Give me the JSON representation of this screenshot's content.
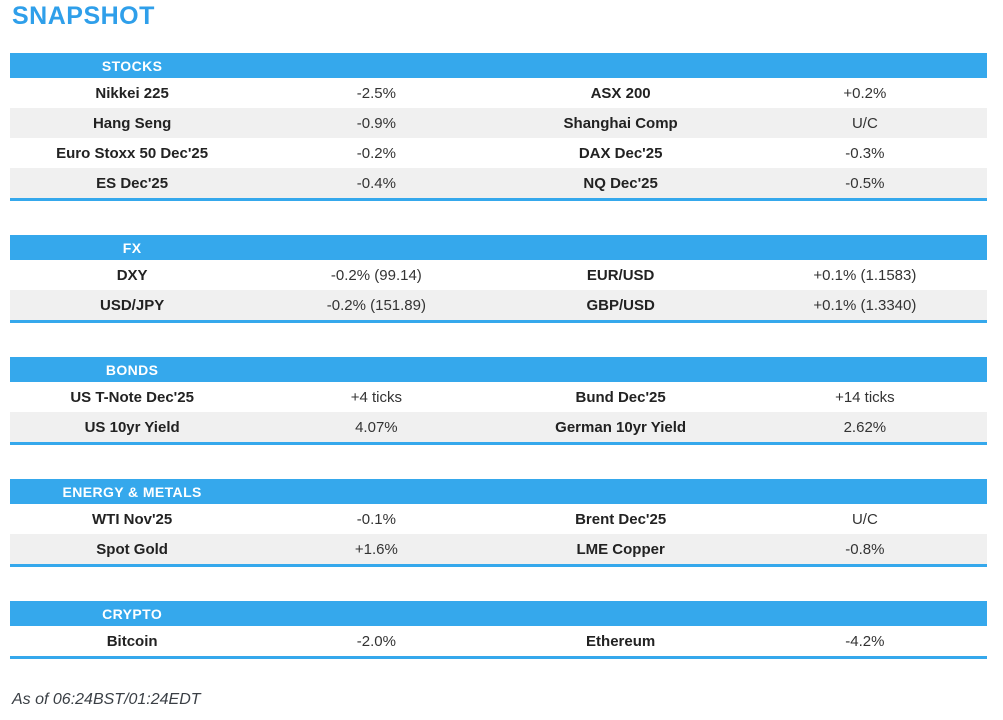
{
  "page": {
    "title": "SNAPSHOT",
    "footer": "As of 06:24BST/01:24EDT"
  },
  "colors": {
    "accent_blue": "#35a8ec",
    "title_blue": "#2f9fea",
    "row_alt_gray": "#f0f0f0",
    "label_text": "#222222",
    "value_text": "#333333"
  },
  "sections": [
    {
      "header": "STOCKS",
      "rows": [
        [
          "Nikkei 225",
          "-2.5%",
          "ASX 200",
          "+0.2%"
        ],
        [
          "Hang Seng",
          "-0.9%",
          "Shanghai Comp",
          "U/C"
        ],
        [
          "Euro Stoxx 50 Dec'25",
          "-0.2%",
          "DAX Dec'25",
          "-0.3%"
        ],
        [
          "ES Dec'25",
          "-0.4%",
          "NQ Dec'25",
          "-0.5%"
        ]
      ]
    },
    {
      "header": "FX",
      "rows": [
        [
          "DXY",
          "-0.2% (99.14)",
          "EUR/USD",
          "+0.1% (1.1583)"
        ],
        [
          "USD/JPY",
          "-0.2% (151.89)",
          "GBP/USD",
          "+0.1% (1.3340)"
        ]
      ]
    },
    {
      "header": "BONDS",
      "rows": [
        [
          "US T-Note Dec'25",
          "+4 ticks",
          "Bund Dec'25",
          "+14 ticks"
        ],
        [
          "US 10yr Yield",
          "4.07%",
          "German 10yr Yield",
          "2.62%"
        ]
      ]
    },
    {
      "header": "ENERGY & METALS",
      "rows": [
        [
          "WTI Nov'25",
          "-0.1%",
          "Brent Dec'25",
          "U/C"
        ],
        [
          "Spot Gold",
          "+1.6%",
          "LME Copper",
          "-0.8%"
        ]
      ]
    },
    {
      "header": "CRYPTO",
      "rows": [
        [
          "Bitcoin",
          "-2.0%",
          "Ethereum",
          "-4.2%"
        ]
      ]
    }
  ]
}
